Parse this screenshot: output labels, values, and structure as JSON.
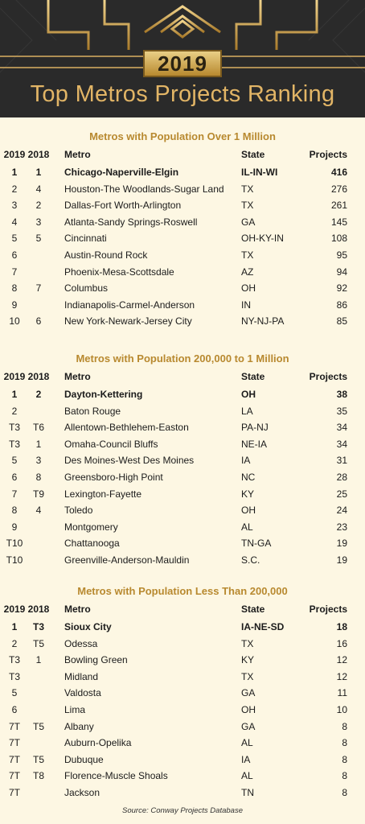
{
  "header": {
    "year": "2019",
    "title": "Top Metros Projects Ranking"
  },
  "columns": {
    "y2019": "2019",
    "y2018": "2018",
    "metro": "Metro",
    "state": "State",
    "projects": "Projects"
  },
  "sections": [
    {
      "title": "Metros with Population Over 1 Million",
      "rows": [
        {
          "r2019": "1",
          "r2018": "1",
          "metro": "Chicago-Naperville-Elgin",
          "state": "IL-IN-WI",
          "projects": "416"
        },
        {
          "r2019": "2",
          "r2018": "4",
          "metro": "Houston-The Woodlands-Sugar Land",
          "state": "TX",
          "projects": "276"
        },
        {
          "r2019": "3",
          "r2018": "2",
          "metro": "Dallas-Fort Worth-Arlington",
          "state": "TX",
          "projects": "261"
        },
        {
          "r2019": "4",
          "r2018": "3",
          "metro": "Atlanta-Sandy Springs-Roswell",
          "state": "GA",
          "projects": "145"
        },
        {
          "r2019": "5",
          "r2018": "5",
          "metro": "Cincinnati",
          "state": "OH-KY-IN",
          "projects": "108"
        },
        {
          "r2019": "6",
          "r2018": "",
          "metro": "Austin-Round Rock",
          "state": "TX",
          "projects": "95"
        },
        {
          "r2019": "7",
          "r2018": "",
          "metro": "Phoenix-Mesa-Scottsdale",
          "state": "AZ",
          "projects": "94"
        },
        {
          "r2019": "8",
          "r2018": "7",
          "metro": "Columbus",
          "state": "OH",
          "projects": "92"
        },
        {
          "r2019": "9",
          "r2018": "",
          "metro": "Indianapolis-Carmel-Anderson",
          "state": "IN",
          "projects": "86"
        },
        {
          "r2019": "10",
          "r2018": "6",
          "metro": "New York-Newark-Jersey City",
          "state": "NY-NJ-PA",
          "projects": "85"
        }
      ]
    },
    {
      "title": "Metros with Population 200,000 to 1 Million",
      "rows": [
        {
          "r2019": "1",
          "r2018": "2",
          "metro": "Dayton-Kettering",
          "state": "OH",
          "projects": "38"
        },
        {
          "r2019": "2",
          "r2018": "",
          "metro": "Baton Rouge",
          "state": "LA",
          "projects": "35"
        },
        {
          "r2019": "T3",
          "r2018": "T6",
          "metro": "Allentown-Bethlehem-Easton",
          "state": "PA-NJ",
          "projects": "34"
        },
        {
          "r2019": "T3",
          "r2018": "1",
          "metro": "Omaha-Council Bluffs",
          "state": "NE-IA",
          "projects": "34"
        },
        {
          "r2019": "5",
          "r2018": "3",
          "metro": "Des Moines-West Des Moines",
          "state": "IA",
          "projects": "31"
        },
        {
          "r2019": "6",
          "r2018": "8",
          "metro": "Greensboro-High Point",
          "state": "NC",
          "projects": "28"
        },
        {
          "r2019": "7",
          "r2018": "T9",
          "metro": "Lexington-Fayette",
          "state": "KY",
          "projects": "25"
        },
        {
          "r2019": "8",
          "r2018": "4",
          "metro": "Toledo",
          "state": "OH",
          "projects": "24"
        },
        {
          "r2019": "9",
          "r2018": "",
          "metro": "Montgomery",
          "state": "AL",
          "projects": "23"
        },
        {
          "r2019": "T10",
          "r2018": "",
          "metro": "Chattanooga",
          "state": "TN-GA",
          "projects": "19"
        },
        {
          "r2019": "T10",
          "r2018": "",
          "metro": "Greenville-Anderson-Mauldin",
          "state": "S.C.",
          "projects": "19"
        }
      ]
    },
    {
      "title": "Metros with Population Less Than 200,000",
      "rows": [
        {
          "r2019": "1",
          "r2018": "T3",
          "metro": "Sioux City",
          "state": "IA-NE-SD",
          "projects": "18"
        },
        {
          "r2019": "2",
          "r2018": "T5",
          "metro": "Odessa",
          "state": "TX",
          "projects": "16"
        },
        {
          "r2019": "T3",
          "r2018": "1",
          "metro": "Bowling Green",
          "state": "KY",
          "projects": "12"
        },
        {
          "r2019": "T3",
          "r2018": "",
          "metro": "Midland",
          "state": "TX",
          "projects": "12"
        },
        {
          "r2019": "5",
          "r2018": "",
          "metro": "Valdosta",
          "state": "GA",
          "projects": "11"
        },
        {
          "r2019": "6",
          "r2018": "",
          "metro": "Lima",
          "state": "OH",
          "projects": "10"
        },
        {
          "r2019": "7T",
          "r2018": "T5",
          "metro": "Albany",
          "state": "GA",
          "projects": "8"
        },
        {
          "r2019": "7T",
          "r2018": "",
          "metro": "Auburn-Opelika",
          "state": "AL",
          "projects": "8"
        },
        {
          "r2019": "7T",
          "r2018": "T5",
          "metro": "Dubuque",
          "state": "IA",
          "projects": "8"
        },
        {
          "r2019": "7T",
          "r2018": "T8",
          "metro": "Florence-Muscle Shoals",
          "state": "AL",
          "projects": "8"
        },
        {
          "r2019": "7T",
          "r2018": "",
          "metro": "Jackson",
          "state": "TN",
          "projects": "8"
        }
      ]
    }
  ],
  "source": "Source: Conway Projects Database"
}
